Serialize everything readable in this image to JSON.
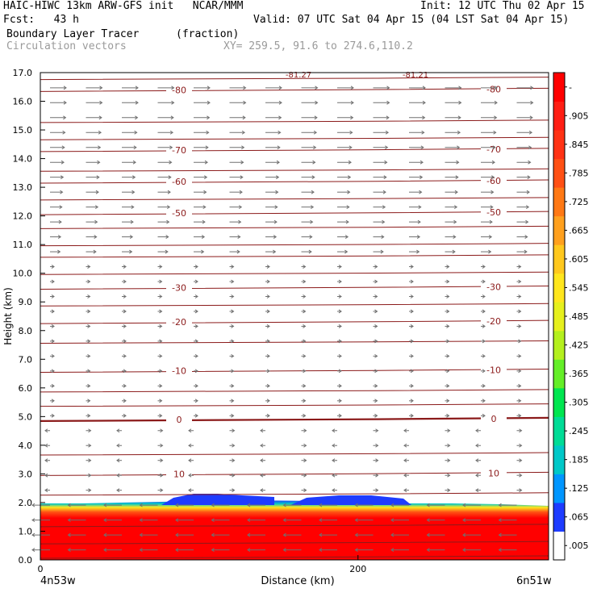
{
  "header": {
    "title": "HAIC-HIWC 13km ARW-GFS init   NCAR/MMM",
    "init": "Init: 12 UTC Thu 02 Apr 15",
    "fcst": "Fcst:   43 h",
    "valid": "Valid: 07 UTC Sat 04 Apr 15 (04 LST Sat 04 Apr 15)",
    "field": "Boundary Layer Tracer",
    "units": "(fraction)",
    "vectors": "Circulation vectors",
    "xy": "XY= 259.5, 91.6 to 274.6,110.2"
  },
  "chart_data": {
    "type": "heatmap",
    "xlabel": "Distance (km)",
    "ylabel": "Height (km)",
    "x_ticks": [
      0,
      200
    ],
    "x_lim": [
      0,
      320
    ],
    "y_ticks": [
      "0.0",
      "1.0",
      "2.0",
      "3.0",
      "4.0",
      "5.0",
      "6.0",
      "7.0",
      "8.0",
      "9.0",
      "10.0",
      "11.0",
      "12.0",
      "13.0",
      "14.0",
      "15.0",
      "16.0",
      "17.0"
    ],
    "ylim": [
      0,
      17
    ],
    "left_endpoint": "4n53w",
    "right_endpoint": "6n51w",
    "colorbar_labels": [
      ".005",
      ".065",
      ".125",
      ".185",
      ".245",
      ".305",
      ".365",
      ".425",
      ".485",
      ".545",
      ".605",
      ".665",
      ".725",
      ".785",
      ".845",
      ".905",
      "-"
    ],
    "colorbar_colors": [
      "#ffffff",
      "#1e3cff",
      "#0096ff",
      "#00c8c8",
      "#00dc96",
      "#00e650",
      "#64ee28",
      "#b4f01e",
      "#e6f01e",
      "#ffe61e",
      "#ffc81e",
      "#ffa01e",
      "#ff7814",
      "#ff5014",
      "#ff3214",
      "#ff1e14",
      "#ff0000"
    ],
    "temperature_contours": [
      {
        "label": "10",
        "height_km": 3.0
      },
      {
        "label": "0",
        "height_km": 4.9
      },
      {
        "label": "-10",
        "height_km": 6.6
      },
      {
        "label": "-20",
        "height_km": 8.3
      },
      {
        "label": "-30",
        "height_km": 9.5
      },
      {
        "label": "-50",
        "height_km": 12.1
      },
      {
        "label": "-60",
        "height_km": 13.2
      },
      {
        "label": "-70",
        "height_km": 14.3
      },
      {
        "label": "-80",
        "height_km": 16.4
      }
    ],
    "top_labels": [
      "-81.27",
      "-81.21"
    ],
    "tracer_top_km": 2.0,
    "tracer_value_boundary_layer": 1.0
  }
}
